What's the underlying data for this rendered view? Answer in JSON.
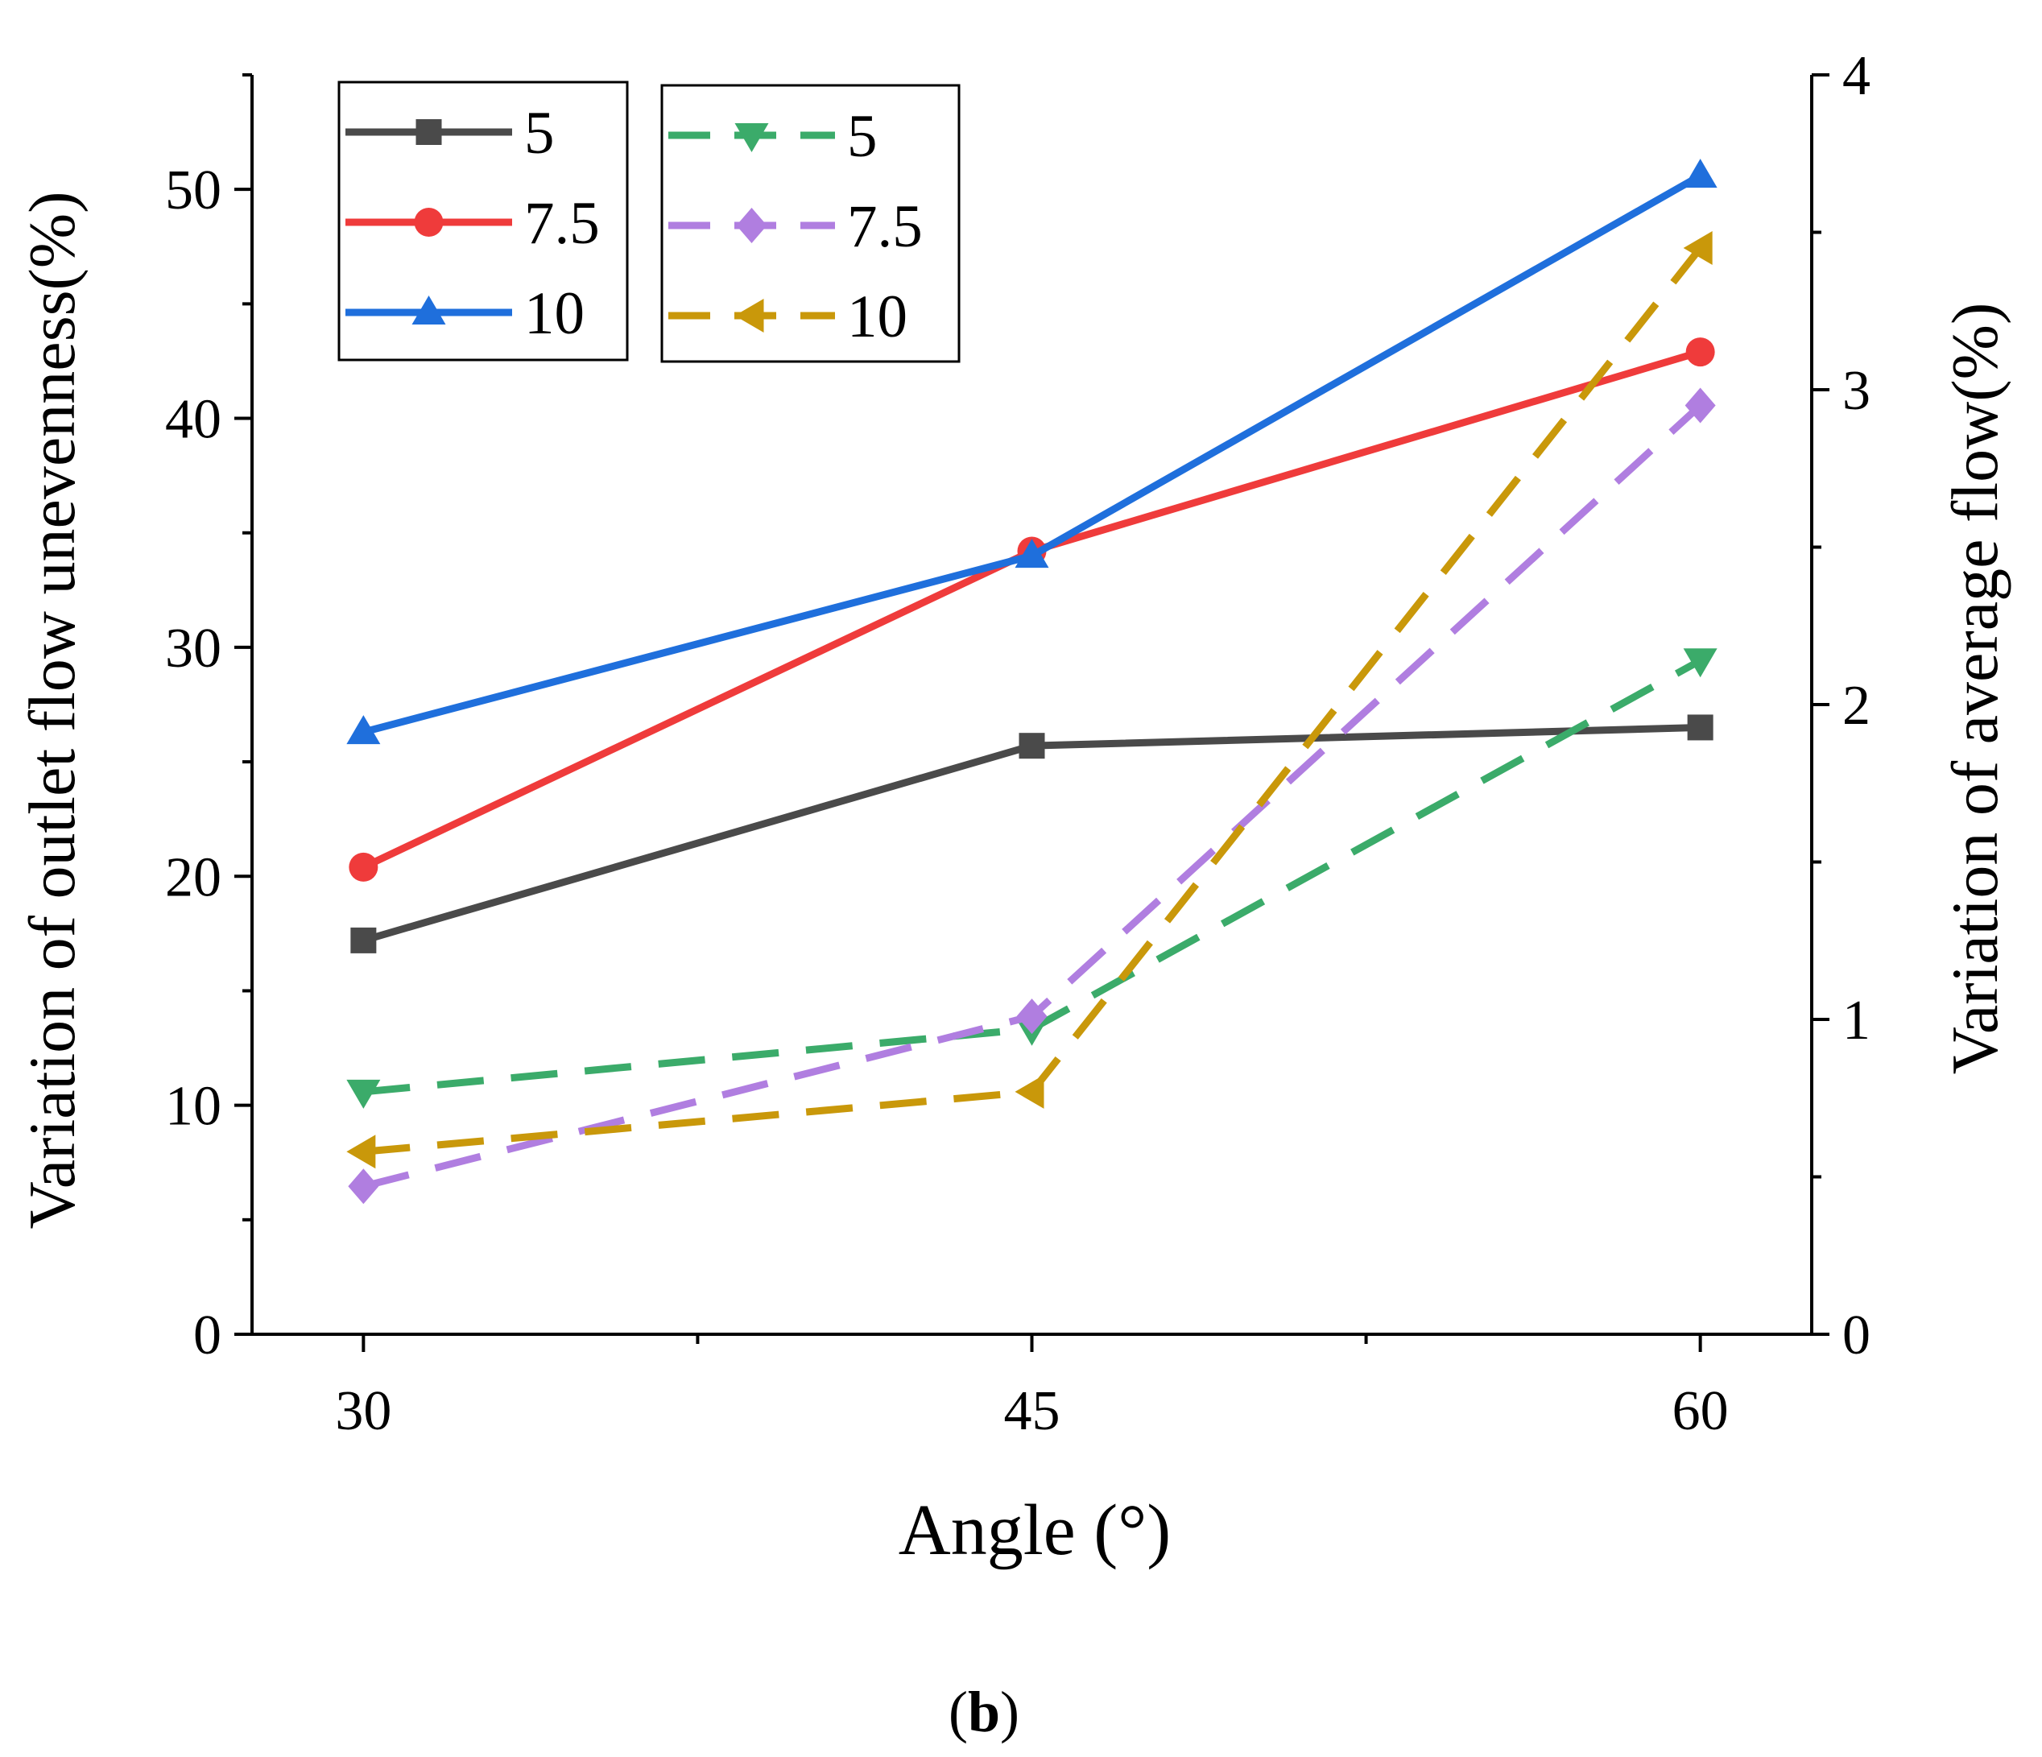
{
  "chart_data": {
    "type": "line",
    "title": "",
    "xlabel": "Angle (°)",
    "ylabel": "Variation of outlet flow unevenness(%)",
    "y2label": "Variation of average flow(%)",
    "caption_paren_open": "(",
    "caption_letter": "b",
    "caption_paren_close": ")",
    "x": [
      30,
      45,
      60
    ],
    "xlim": [
      27.5,
      62.5
    ],
    "ylim": [
      0,
      55
    ],
    "y2lim": [
      0,
      4
    ],
    "x_ticks": [
      "30",
      "45",
      "60"
    ],
    "y_ticks": [
      "0",
      "10",
      "20",
      "30",
      "40",
      "50"
    ],
    "y2_ticks": [
      "0",
      "1",
      "2",
      "3",
      "4"
    ],
    "grid": false,
    "legend_placement": "top-left",
    "series": [
      {
        "name": "5",
        "axis": "left",
        "values": [
          17.2,
          25.7,
          26.5
        ],
        "color": "#4a4a4a",
        "dashed": false,
        "marker": "square"
      },
      {
        "name": "7.5",
        "axis": "left",
        "values": [
          20.4,
          34.2,
          42.9
        ],
        "color": "#ef3b3b",
        "dashed": false,
        "marker": "circle"
      },
      {
        "name": "10",
        "axis": "left",
        "values": [
          26.3,
          34.0,
          50.6
        ],
        "color": "#1f6fdc",
        "dashed": false,
        "marker": "triangle-up"
      },
      {
        "name": "5",
        "axis": "right",
        "values": [
          0.77,
          0.97,
          2.14
        ],
        "color": "#3bab6a",
        "dashed": true,
        "marker": "triangle-down"
      },
      {
        "name": "7.5",
        "axis": "right",
        "values": [
          0.47,
          1.01,
          2.95
        ],
        "color": "#b07ee0",
        "dashed": true,
        "marker": "diamond"
      },
      {
        "name": "10",
        "axis": "right",
        "values": [
          0.58,
          0.77,
          3.45
        ],
        "color": "#c9980a",
        "dashed": true,
        "marker": "triangle-left"
      }
    ]
  }
}
